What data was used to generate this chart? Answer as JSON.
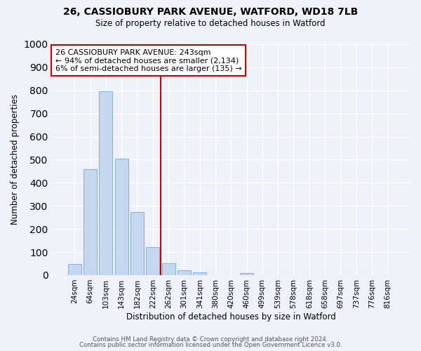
{
  "title_line1": "26, CASSIOBURY PARK AVENUE, WATFORD, WD18 7LB",
  "title_line2": "Size of property relative to detached houses in Watford",
  "xlabel": "Distribution of detached houses by size in Watford",
  "ylabel": "Number of detached properties",
  "bar_labels": [
    "24sqm",
    "64sqm",
    "103sqm",
    "143sqm",
    "182sqm",
    "222sqm",
    "262sqm",
    "301sqm",
    "341sqm",
    "380sqm",
    "420sqm",
    "460sqm",
    "499sqm",
    "539sqm",
    "578sqm",
    "618sqm",
    "658sqm",
    "697sqm",
    "737sqm",
    "776sqm",
    "816sqm"
  ],
  "bar_values": [
    50,
    460,
    795,
    505,
    272,
    122,
    52,
    20,
    12,
    0,
    0,
    10,
    0,
    0,
    0,
    0,
    0,
    0,
    0,
    0,
    0
  ],
  "bar_color": "#c5d8f0",
  "bar_edge_color": "#8ab4d8",
  "vline_x": 5.5,
  "vline_color": "#cc0000",
  "annotation_text": "26 CASSIOBURY PARK AVENUE: 243sqm\n← 94% of detached houses are smaller (2,134)\n6% of semi-detached houses are larger (135) →",
  "annotation_box_color": "#ffffff",
  "annotation_box_edge": "#cc0000",
  "ylim": [
    0,
    1000
  ],
  "yticks": [
    0,
    100,
    200,
    300,
    400,
    500,
    600,
    700,
    800,
    900,
    1000
  ],
  "bg_color": "#eef2f8",
  "grid_color": "#ffffff",
  "footer_line1": "Contains HM Land Registry data © Crown copyright and database right 2024.",
  "footer_line2": "Contains public sector information licensed under the Open Government Licence v3.0."
}
